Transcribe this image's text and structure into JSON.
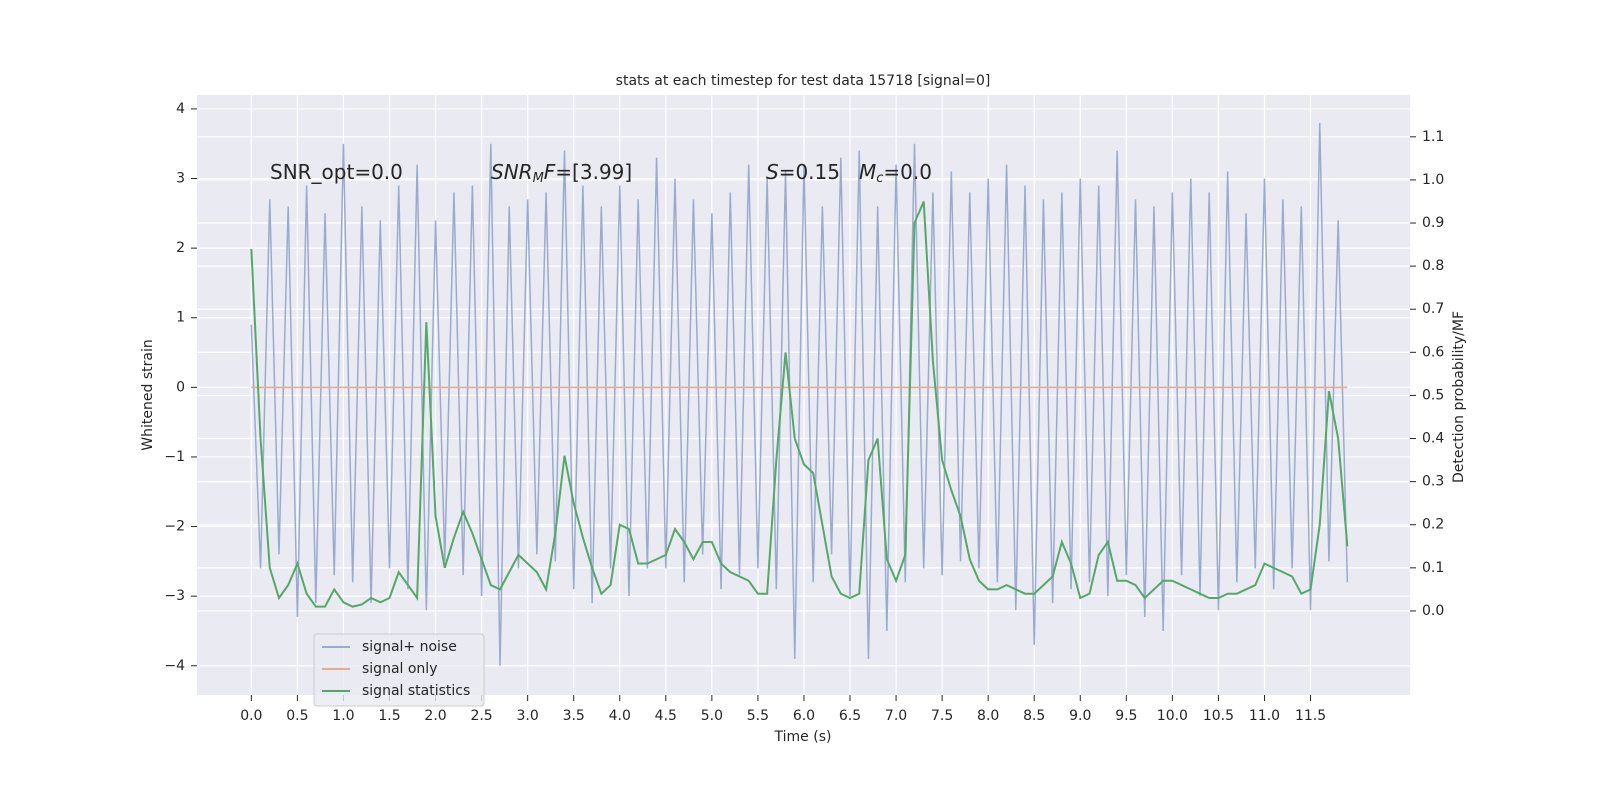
{
  "chart_data": {
    "type": "line",
    "title": "stats at each timestep for test data 15718 [signal=0]",
    "x_label": "Time (s)",
    "y_label": "Whitened strain",
    "y2_label": "Detection probability/MF",
    "annotations": [
      [
        "SNR_opt=0.0"
      ],
      [
        "SNR",
        "M",
        "F",
        "=[3.99]"
      ],
      [
        "S",
        "=0.15"
      ],
      [
        "M",
        "c",
        "=0.0"
      ]
    ],
    "x": [
      0.0,
      0.1,
      0.2,
      0.3,
      0.4,
      0.5,
      0.6,
      0.7,
      0.8,
      0.9,
      1.0,
      1.1,
      1.2,
      1.3,
      1.4,
      1.5,
      1.6,
      1.7,
      1.8,
      1.9,
      2.0,
      2.1,
      2.2,
      2.3,
      2.4,
      2.5,
      2.6,
      2.7,
      2.8,
      2.9,
      3.0,
      3.1,
      3.2,
      3.3,
      3.4,
      3.5,
      3.6,
      3.7,
      3.8,
      3.9,
      4.0,
      4.1,
      4.2,
      4.3,
      4.4,
      4.5,
      4.6,
      4.7,
      4.8,
      4.9,
      5.0,
      5.1,
      5.2,
      5.3,
      5.4,
      5.5,
      5.6,
      5.7,
      5.8,
      5.9,
      6.0,
      6.1,
      6.2,
      6.3,
      6.4,
      6.5,
      6.6,
      6.7,
      6.8,
      6.9,
      7.0,
      7.1,
      7.2,
      7.3,
      7.4,
      7.5,
      7.6,
      7.7,
      7.8,
      7.9,
      8.0,
      8.1,
      8.2,
      8.3,
      8.4,
      8.5,
      8.6,
      8.7,
      8.8,
      8.9,
      9.0,
      9.1,
      9.2,
      9.3,
      9.4,
      9.5,
      9.6,
      9.7,
      9.8,
      9.9,
      10.0,
      10.1,
      10.2,
      10.3,
      10.4,
      10.5,
      10.6,
      10.7,
      10.8,
      10.9,
      11.0,
      11.1,
      11.2,
      11.3,
      11.4,
      11.5,
      11.6,
      11.7,
      11.8,
      11.9
    ],
    "series": [
      {
        "name": "signal+ noise",
        "color": "#9aabd0",
        "axis": "y",
        "values": [
          0.9,
          -2.6,
          2.7,
          -2.4,
          2.6,
          -3.3,
          2.9,
          -3.1,
          2.5,
          -2.7,
          3.5,
          -2.8,
          2.6,
          -3.1,
          2.4,
          -2.6,
          2.9,
          -2.9,
          3.2,
          -3.2,
          2.4,
          -2.5,
          2.8,
          -2.7,
          2.9,
          -3.0,
          3.5,
          -4.0,
          2.6,
          -2.6,
          2.7,
          -2.4,
          2.8,
          -2.5,
          3.4,
          -2.9,
          2.9,
          -3.1,
          2.6,
          -2.6,
          2.9,
          -3.0,
          2.7,
          -2.6,
          3.3,
          -2.6,
          3.0,
          -2.8,
          2.7,
          -2.4,
          2.5,
          -2.9,
          2.8,
          -2.7,
          3.2,
          -2.6,
          3.0,
          -2.9,
          3.1,
          -3.9,
          3.2,
          -2.8,
          2.6,
          -2.4,
          3.3,
          -3.0,
          3.4,
          -3.9,
          2.6,
          -3.5,
          3.2,
          -2.8,
          3.5,
          -2.6,
          2.8,
          -2.7,
          3.1,
          -2.5,
          2.8,
          -2.6,
          3.0,
          -2.8,
          3.2,
          -3.2,
          2.9,
          -3.7,
          2.7,
          -3.1,
          2.8,
          -2.9,
          3.0,
          -2.8,
          2.9,
          -3.0,
          3.4,
          -2.7,
          2.7,
          -3.3,
          2.6,
          -3.5,
          2.8,
          -2.7,
          3.0,
          -3.0,
          2.8,
          -3.2,
          3.1,
          -2.8,
          2.5,
          -2.6,
          3.0,
          -2.9,
          2.7,
          -2.6,
          2.6,
          -3.2,
          3.8,
          -2.5,
          2.4,
          -2.8
        ]
      },
      {
        "name": "signal only",
        "color": "#e6ab8c",
        "axis": "y",
        "values": [
          0,
          0,
          0,
          0,
          0,
          0,
          0,
          0,
          0,
          0,
          0,
          0,
          0,
          0,
          0,
          0,
          0,
          0,
          0,
          0,
          0,
          0,
          0,
          0,
          0,
          0,
          0,
          0,
          0,
          0,
          0,
          0,
          0,
          0,
          0,
          0,
          0,
          0,
          0,
          0,
          0,
          0,
          0,
          0,
          0,
          0,
          0,
          0,
          0,
          0,
          0,
          0,
          0,
          0,
          0,
          0,
          0,
          0,
          0,
          0,
          0,
          0,
          0,
          0,
          0,
          0,
          0,
          0,
          0,
          0,
          0,
          0,
          0,
          0,
          0,
          0,
          0,
          0,
          0,
          0,
          0,
          0,
          0,
          0,
          0,
          0,
          0,
          0,
          0,
          0,
          0,
          0,
          0,
          0,
          0,
          0,
          0,
          0,
          0,
          0,
          0,
          0,
          0,
          0,
          0,
          0,
          0,
          0,
          0,
          0,
          0,
          0,
          0,
          0,
          0,
          0,
          0,
          0,
          0,
          0
        ]
      },
      {
        "name": "signal statistics",
        "color": "#55a868",
        "axis": "y2",
        "values": [
          0.84,
          0.4,
          0.1,
          0.03,
          0.06,
          0.11,
          0.04,
          0.01,
          0.01,
          0.05,
          0.02,
          0.01,
          0.015,
          0.03,
          0.02,
          0.03,
          0.09,
          0.06,
          0.03,
          0.67,
          0.22,
          0.1,
          0.17,
          0.23,
          0.18,
          0.12,
          0.06,
          0.05,
          0.09,
          0.13,
          0.11,
          0.09,
          0.05,
          0.18,
          0.36,
          0.25,
          0.17,
          0.1,
          0.04,
          0.06,
          0.2,
          0.19,
          0.11,
          0.11,
          0.12,
          0.13,
          0.19,
          0.16,
          0.12,
          0.16,
          0.16,
          0.11,
          0.09,
          0.08,
          0.07,
          0.04,
          0.04,
          0.35,
          0.6,
          0.4,
          0.34,
          0.32,
          0.2,
          0.08,
          0.04,
          0.03,
          0.04,
          0.35,
          0.4,
          0.12,
          0.07,
          0.13,
          0.9,
          0.95,
          0.58,
          0.35,
          0.28,
          0.22,
          0.12,
          0.07,
          0.05,
          0.05,
          0.06,
          0.05,
          0.04,
          0.04,
          0.06,
          0.08,
          0.16,
          0.11,
          0.03,
          0.04,
          0.13,
          0.16,
          0.07,
          0.07,
          0.06,
          0.03,
          0.05,
          0.07,
          0.07,
          0.06,
          0.05,
          0.04,
          0.03,
          0.03,
          0.04,
          0.04,
          0.05,
          0.06,
          0.11,
          0.1,
          0.09,
          0.08,
          0.04,
          0.05,
          0.2,
          0.51,
          0.4,
          0.15
        ]
      }
    ],
    "xlim": [
      -0.59,
      12.58
    ],
    "xticks": [
      {
        "value": 0,
        "label": "0.0"
      },
      0.5,
      {
        "value": 1,
        "label": "1.0"
      },
      1.5,
      {
        "value": 2,
        "label": "2.0"
      },
      2.5,
      {
        "value": 3,
        "label": "3.0"
      },
      3.5,
      {
        "value": 4,
        "label": "4.0"
      },
      4.5,
      {
        "value": 5,
        "label": "5.0"
      },
      5.5,
      {
        "value": 6,
        "label": "6.0"
      },
      6.5,
      {
        "value": 7,
        "label": "7.0"
      },
      7.5,
      {
        "value": 8,
        "label": "8.0"
      },
      8.5,
      {
        "value": 9,
        "label": "9.0"
      },
      9.5,
      {
        "value": 10,
        "label": "10.0"
      },
      10.5,
      {
        "value": 11,
        "label": "11.0"
      },
      11.5
    ],
    "ylim": [
      -4.42,
      4.2
    ],
    "yticks": [
      {
        "value": -4,
        "label": "−4"
      },
      {
        "value": -3,
        "label": "−3"
      },
      {
        "value": -2,
        "label": "−2"
      },
      {
        "value": -1,
        "label": "−1"
      },
      0,
      1,
      2,
      3,
      4
    ],
    "y2lim": [
      -0.195,
      1.197
    ],
    "y2ticks": [
      {
        "value": 0,
        "label": "0.0"
      },
      0.1,
      0.2,
      0.3,
      0.4,
      0.5,
      0.6,
      0.7,
      0.8,
      0.9,
      {
        "value": 1,
        "label": "1.0"
      },
      1.1
    ],
    "grid": true,
    "legend": "lower left"
  }
}
